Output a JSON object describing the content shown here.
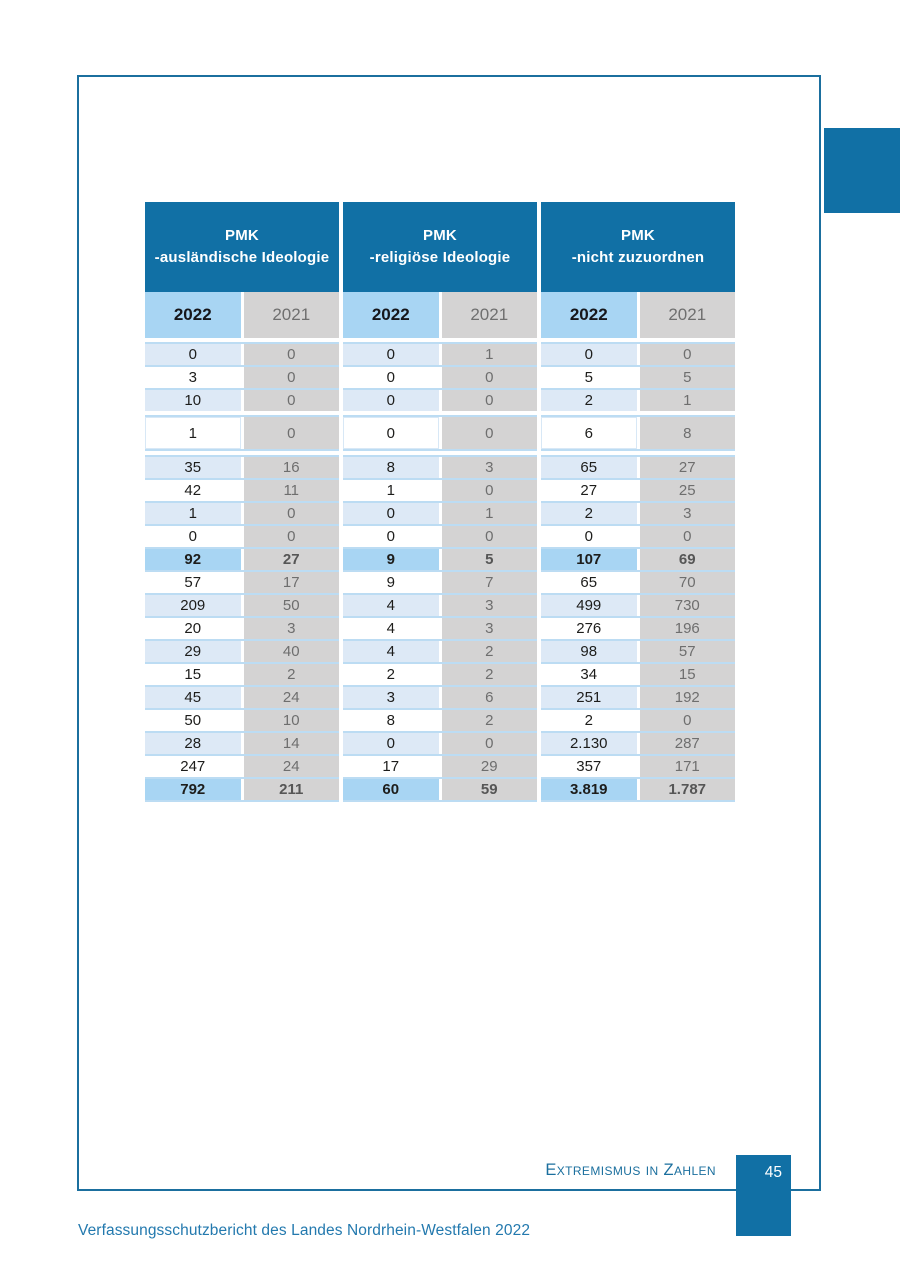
{
  "document": {
    "footer": {
      "section_label": "Extremismus in Zahlen",
      "page_number": "45",
      "doc_title": "Verfassungsschutzbericht des Landes Nordrhein-Westfalen 2022"
    },
    "colors": {
      "primary_blue": "#1170a5",
      "frame_blue": "#1b6f9e",
      "highlight_blue": "#a8d5f3",
      "row_tint_blue": "#dde9f6",
      "column_gray": "#d4d3d3",
      "separator_blue": "#bcdcf3",
      "value_text_dark": "#1d1d1b",
      "value_text_gray": "#6e6e6e"
    }
  },
  "table": {
    "years": [
      "2022",
      "2021"
    ],
    "tall_row_index": 3,
    "summary_row_indexes": [
      8,
      18
    ],
    "groups": [
      {
        "title_line1": "PMK",
        "title_line2": "-ausländische Ideologie",
        "rows": [
          [
            "0",
            "0"
          ],
          [
            "3",
            "0"
          ],
          [
            "10",
            "0"
          ],
          [
            "1",
            "0"
          ],
          [
            "35",
            "16"
          ],
          [
            "42",
            "11"
          ],
          [
            "1",
            "0"
          ],
          [
            "0",
            "0"
          ],
          [
            "92",
            "27"
          ],
          [
            "57",
            "17"
          ],
          [
            "209",
            "50"
          ],
          [
            "20",
            "3"
          ],
          [
            "29",
            "40"
          ],
          [
            "15",
            "2"
          ],
          [
            "45",
            "24"
          ],
          [
            "50",
            "10"
          ],
          [
            "28",
            "14"
          ],
          [
            "247",
            "24"
          ],
          [
            "792",
            "211"
          ]
        ]
      },
      {
        "title_line1": "PMK",
        "title_line2": "-religiöse Ideologie",
        "rows": [
          [
            "0",
            "1"
          ],
          [
            "0",
            "0"
          ],
          [
            "0",
            "0"
          ],
          [
            "0",
            "0"
          ],
          [
            "8",
            "3"
          ],
          [
            "1",
            "0"
          ],
          [
            "0",
            "1"
          ],
          [
            "0",
            "0"
          ],
          [
            "9",
            "5"
          ],
          [
            "9",
            "7"
          ],
          [
            "4",
            "3"
          ],
          [
            "4",
            "3"
          ],
          [
            "4",
            "2"
          ],
          [
            "2",
            "2"
          ],
          [
            "3",
            "6"
          ],
          [
            "8",
            "2"
          ],
          [
            "0",
            "0"
          ],
          [
            "17",
            "29"
          ],
          [
            "60",
            "59"
          ]
        ]
      },
      {
        "title_line1": "PMK",
        "title_line2": "-nicht zuzuordnen",
        "rows": [
          [
            "0",
            "0"
          ],
          [
            "5",
            "5"
          ],
          [
            "2",
            "1"
          ],
          [
            "6",
            "8"
          ],
          [
            "65",
            "27"
          ],
          [
            "27",
            "25"
          ],
          [
            "2",
            "3"
          ],
          [
            "0",
            "0"
          ],
          [
            "107",
            "69"
          ],
          [
            "65",
            "70"
          ],
          [
            "499",
            "730"
          ],
          [
            "276",
            "196"
          ],
          [
            "98",
            "57"
          ],
          [
            "34",
            "15"
          ],
          [
            "251",
            "192"
          ],
          [
            "2",
            "0"
          ],
          [
            "2.130",
            "287"
          ],
          [
            "357",
            "171"
          ],
          [
            "3.819",
            "1.787"
          ]
        ]
      }
    ]
  }
}
